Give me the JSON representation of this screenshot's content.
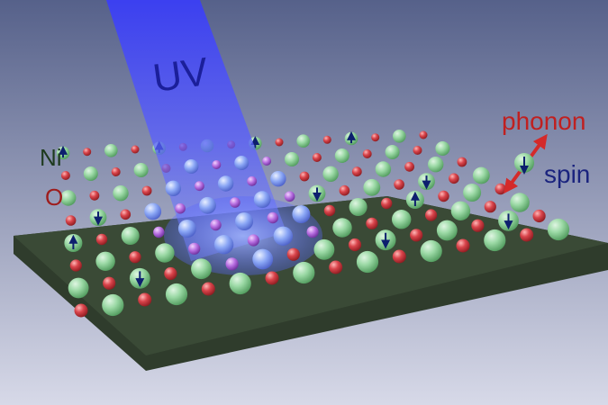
{
  "labels": {
    "uv": "UV",
    "ni": "Ni",
    "o": "O",
    "phonon": "phonon",
    "spin": "spin"
  },
  "colors": {
    "background_top": "#56618a",
    "background_bottom": "#d7d9e8",
    "substrate": "#2f3c2c",
    "uv_beam": "#3a3ef5",
    "nickel_atom": "#8fd39a",
    "oxygen_atom": "#d2373f",
    "excited_atom": "#7f9cf2",
    "spin_arrow": "#0d1f6e",
    "phonon_arrow": "#d42a2a",
    "text_uv": "#1b1f9a",
    "text_ni": "#1e3a1e",
    "text_o": "#9e1c1c",
    "text_phonon": "#c02020",
    "text_spin": "#1a237e"
  }
}
